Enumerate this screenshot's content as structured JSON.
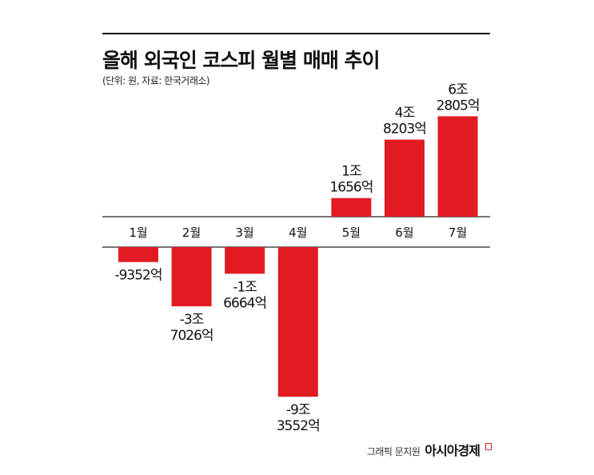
{
  "title": "올해 외국인 코스피 월별 매매 추이",
  "subtitle": "(단위: 원, 자료: 한국거래소)",
  "credit": {
    "text": "그래픽 문지원",
    "brand": "아시아경제"
  },
  "colors": {
    "bar": "#e21b23",
    "axis": "#222222",
    "text": "#111111"
  },
  "chart_data": {
    "type": "bar",
    "categories": [
      "1월",
      "2월",
      "3월",
      "4월",
      "5월",
      "6월",
      "7월"
    ],
    "values": [
      -9352,
      -37026,
      -16664,
      -93552,
      11656,
      48203,
      62805
    ],
    "value_unit": "억 원",
    "data_labels": [
      [
        "-9352억"
      ],
      [
        "-3조",
        "7026억"
      ],
      [
        "-1조",
        "6664억"
      ],
      [
        "-9조",
        "3552억"
      ],
      [
        "1조",
        "1656억"
      ],
      [
        "4조",
        "8203억"
      ],
      [
        "6조",
        "2805억"
      ]
    ],
    "title": "올해 외국인 코스피 월별 매매 추이",
    "xlabel": "",
    "ylabel": "",
    "ylim": [
      -100000,
      70000
    ],
    "grid": false,
    "legend": "none"
  }
}
